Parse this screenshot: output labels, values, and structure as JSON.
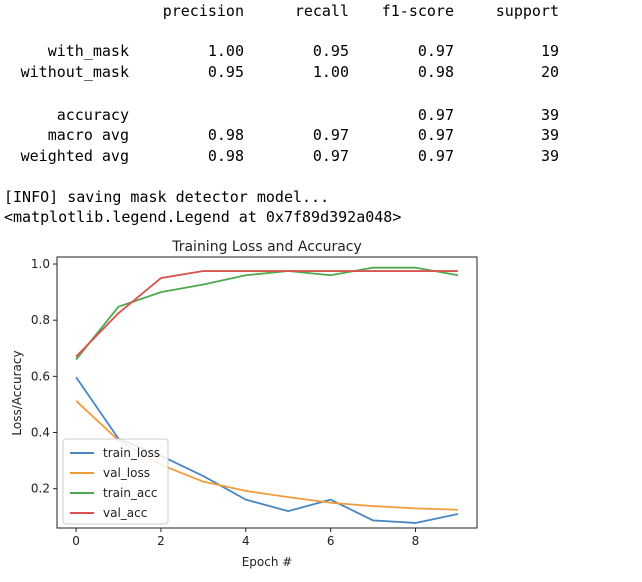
{
  "report": {
    "columns": [
      "precision",
      "recall",
      "f1-score",
      "support"
    ],
    "rows": [
      {
        "label": "with_mask",
        "precision": "1.00",
        "recall": "0.95",
        "f1": "0.97",
        "support": "19"
      },
      {
        "label": "without_mask",
        "precision": "0.95",
        "recall": "1.00",
        "f1": "0.98",
        "support": "20"
      },
      {
        "label": "accuracy",
        "precision": "",
        "recall": "",
        "f1": "0.97",
        "support": "39"
      },
      {
        "label": "macro avg",
        "precision": "0.98",
        "recall": "0.97",
        "f1": "0.97",
        "support": "39"
      },
      {
        "label": "weighted avg",
        "precision": "0.98",
        "recall": "0.97",
        "f1": "0.97",
        "support": "39"
      }
    ]
  },
  "console": {
    "info_line": "[INFO] saving mask detector model...",
    "legend_repr": "<matplotlib.legend.Legend at 0x7f89d392a048>"
  },
  "chart_data": {
    "type": "line",
    "title": "Training Loss and Accuracy",
    "xlabel": "Epoch #",
    "ylabel": "Loss/Accuracy",
    "x": [
      0,
      1,
      2,
      3,
      4,
      5,
      6,
      7,
      8,
      9
    ],
    "xlim": [
      -0.45,
      9.45
    ],
    "ylim": [
      0.06,
      1.025
    ],
    "xticks": [
      0,
      2,
      4,
      6,
      8
    ],
    "yticks": [
      0.2,
      0.4,
      0.6,
      0.8,
      1.0
    ],
    "xtick_labels": [
      "0",
      "2",
      "4",
      "6",
      "8"
    ],
    "ytick_labels": [
      "0.2",
      "0.4",
      "0.6",
      "0.8",
      "1.0"
    ],
    "grid": false,
    "legend_position": "lower-left",
    "series": [
      {
        "name": "train_loss",
        "color": "#4a87c1",
        "values": [
          0.597,
          0.378,
          0.317,
          0.245,
          0.161,
          0.12,
          0.161,
          0.087,
          0.078,
          0.11
        ]
      },
      {
        "name": "val_loss",
        "color": "#f29b3a",
        "values": [
          0.513,
          0.372,
          0.285,
          0.225,
          0.192,
          0.17,
          0.15,
          0.138,
          0.13,
          0.125
        ]
      },
      {
        "name": "train_acc",
        "color": "#4fa94f",
        "values": [
          0.66,
          0.848,
          0.9,
          0.927,
          0.96,
          0.975,
          0.96,
          0.987,
          0.987,
          0.96
        ]
      },
      {
        "name": "val_acc",
        "color": "#d9534f",
        "values": [
          0.67,
          0.825,
          0.95,
          0.975,
          0.975,
          0.975,
          0.975,
          0.975,
          0.975,
          0.975
        ]
      }
    ]
  }
}
